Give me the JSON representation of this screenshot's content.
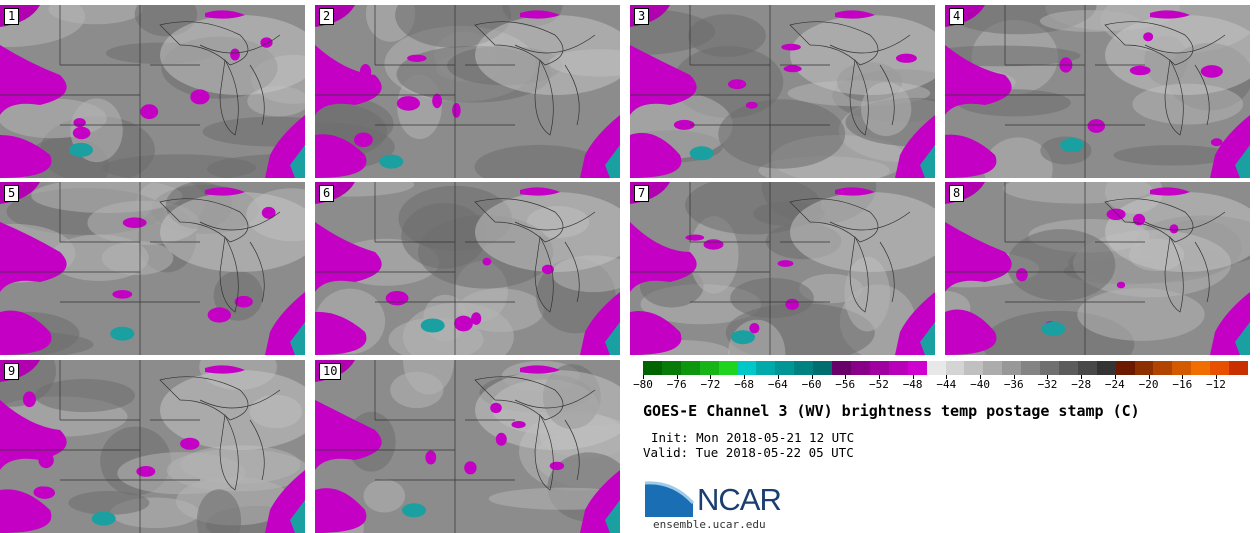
{
  "panels": [
    {
      "label": "1"
    },
    {
      "label": "2"
    },
    {
      "label": "3"
    },
    {
      "label": "4"
    },
    {
      "label": "5"
    },
    {
      "label": "6"
    },
    {
      "label": "7"
    },
    {
      "label": "8"
    },
    {
      "label": "9"
    },
    {
      "label": "10"
    }
  ],
  "colorbar": {
    "colors": [
      "#006400",
      "#087a08",
      "#0f960f",
      "#17b417",
      "#1fd41f",
      "#00c8c8",
      "#00aaaa",
      "#009696",
      "#008282",
      "#006e6e",
      "#6a006a",
      "#880088",
      "#a000a0",
      "#b800b8",
      "#d000d0",
      "#e8e8e8",
      "#d4d4d4",
      "#c0c0c0",
      "#acacac",
      "#989898",
      "#848484",
      "#707070",
      "#5c5c5c",
      "#484848",
      "#343434",
      "#6b1a00",
      "#8c3000",
      "#b04400",
      "#d45a00",
      "#f06e00",
      "#e85000",
      "#c83000"
    ],
    "ticks": [
      "−80",
      "−76",
      "−72",
      "−68",
      "−64",
      "−60",
      "−56",
      "−52",
      "−48",
      "−44",
      "−40",
      "−36",
      "−32",
      "−28",
      "−24",
      "−20",
      "−16",
      "−12"
    ]
  },
  "title": "GOES-E Channel 3 (WV) brightness temp postage stamp (C)",
  "init": "Init: Mon 2018-05-21 12 UTC",
  "valid": "Valid: Tue 2018-05-22 05 UTC",
  "logo": {
    "name": "NCAR",
    "url": "ensemble.ucar.edu"
  },
  "colors": {
    "moist_purple": "#cc00cc",
    "cold_teal": "#1aa0a0",
    "dry_gray": "#8a8a8a"
  }
}
